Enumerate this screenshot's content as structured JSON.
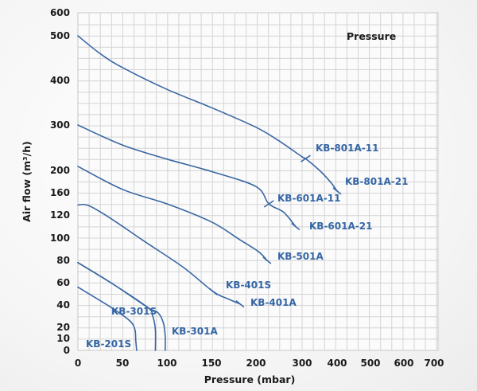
{
  "chart_data": {
    "type": "line",
    "title": "Pressure",
    "xlabel": "Pressure (mbar)",
    "ylabel": "Air flow (m³/h)",
    "x_scale": "piecewise (0–200 linear, 200–700 compressed)",
    "y_scale": "piecewise (non-linear)",
    "xlim": [
      0,
      700
    ],
    "ylim": [
      0,
      600
    ],
    "x_ticks": [
      0,
      50,
      100,
      150,
      200,
      300,
      400,
      500,
      600,
      700
    ],
    "y_ticks": [
      0,
      10,
      20,
      40,
      60,
      80,
      100,
      120,
      160,
      200,
      300,
      400,
      500,
      600
    ],
    "grid": true,
    "legend": "inline labels next to curve endpoints",
    "series": [
      {
        "name": "KB-801A",
        "points": [
          [
            0,
            500
          ],
          [
            25,
            460
          ],
          [
            50,
            429
          ],
          [
            100,
            380
          ],
          [
            150,
            339
          ],
          [
            200,
            295
          ],
          [
            250,
            265
          ],
          [
            300,
            230
          ],
          [
            310,
            226
          ],
          [
            350,
            200
          ],
          [
            380,
            180
          ],
          [
            400,
            163
          ]
        ],
        "markers": [
          {
            "label": "KB-801A-11",
            "x": 310,
            "y": 226
          },
          {
            "label": "KB-801A-21",
            "x": 400,
            "y": 163
          }
        ]
      },
      {
        "name": "KB-601A",
        "points": [
          [
            0,
            300
          ],
          [
            50,
            256
          ],
          [
            100,
            225
          ],
          [
            150,
            198
          ],
          [
            200,
            171
          ],
          [
            228,
            140
          ],
          [
            260,
            125
          ],
          [
            286,
            110
          ]
        ],
        "markers": [
          {
            "label": "KB-601A-11",
            "x": 228,
            "y": 140
          },
          {
            "label": "KB-601A-21",
            "x": 286,
            "y": 110
          }
        ]
      },
      {
        "name": "KB-501A",
        "points": [
          [
            0,
            209
          ],
          [
            50,
            166
          ],
          [
            100,
            140
          ],
          [
            150,
            114
          ],
          [
            181,
            99
          ],
          [
            205,
            88
          ],
          [
            224,
            80
          ]
        ],
        "markers": [
          {
            "label": "KB-501A",
            "x": 224,
            "y": 80
          }
        ]
      },
      {
        "name": "KB-401",
        "points": [
          [
            0,
            138
          ],
          [
            12,
            137
          ],
          [
            37,
            117
          ],
          [
            73,
            98
          ],
          [
            118,
            74
          ],
          [
            152,
            52
          ],
          [
            170,
            45
          ],
          [
            182,
            41
          ]
        ],
        "markers": [
          {
            "label": "KB-401S",
            "x": 152,
            "y": 52
          },
          {
            "label": "KB-401A",
            "x": 182,
            "y": 41
          }
        ]
      },
      {
        "name": "KB-301S",
        "points": [
          [
            0,
            78
          ],
          [
            37,
            60
          ],
          [
            78,
            38
          ],
          [
            84,
            30
          ],
          [
            87,
            18
          ],
          [
            87,
            0
          ]
        ],
        "markers": [
          {
            "label": "KB-301S",
            "x": 78,
            "y": 38
          }
        ]
      },
      {
        "name": "KB-301A",
        "points": [
          [
            0,
            78
          ],
          [
            37,
            60
          ],
          [
            78,
            38
          ],
          [
            90,
            33
          ],
          [
            96,
            24
          ],
          [
            98,
            12
          ],
          [
            98,
            0
          ]
        ],
        "markers": [
          {
            "label": "KB-301A",
            "x": 98,
            "y": 0
          }
        ]
      },
      {
        "name": "KB-201S",
        "points": [
          [
            0,
            56
          ],
          [
            37,
            38
          ],
          [
            58,
            26
          ],
          [
            64,
            18
          ],
          [
            65,
            8
          ],
          [
            66,
            0
          ]
        ],
        "markers": [
          {
            "label": "KB-201S",
            "x": 66,
            "y": 0
          }
        ]
      }
    ],
    "labels": [
      {
        "text": "KB-801A-11",
        "series": "KB-801A"
      },
      {
        "text": "KB-801A-21",
        "series": "KB-801A"
      },
      {
        "text": "KB-601A-11",
        "series": "KB-601A"
      },
      {
        "text": "KB-601A-21",
        "series": "KB-601A"
      },
      {
        "text": "KB-501A",
        "series": "KB-501A"
      },
      {
        "text": "KB-401S",
        "series": "KB-401"
      },
      {
        "text": "KB-401A",
        "series": "KB-401"
      },
      {
        "text": "KB-301S",
        "series": "KB-301S"
      },
      {
        "text": "KB-301A",
        "series": "KB-301A"
      },
      {
        "text": "KB-201S",
        "series": "KB-201S"
      }
    ],
    "colors": {
      "curve": "#3a66a3",
      "label": "#3465a4",
      "grid": "#d4d4d4"
    }
  }
}
